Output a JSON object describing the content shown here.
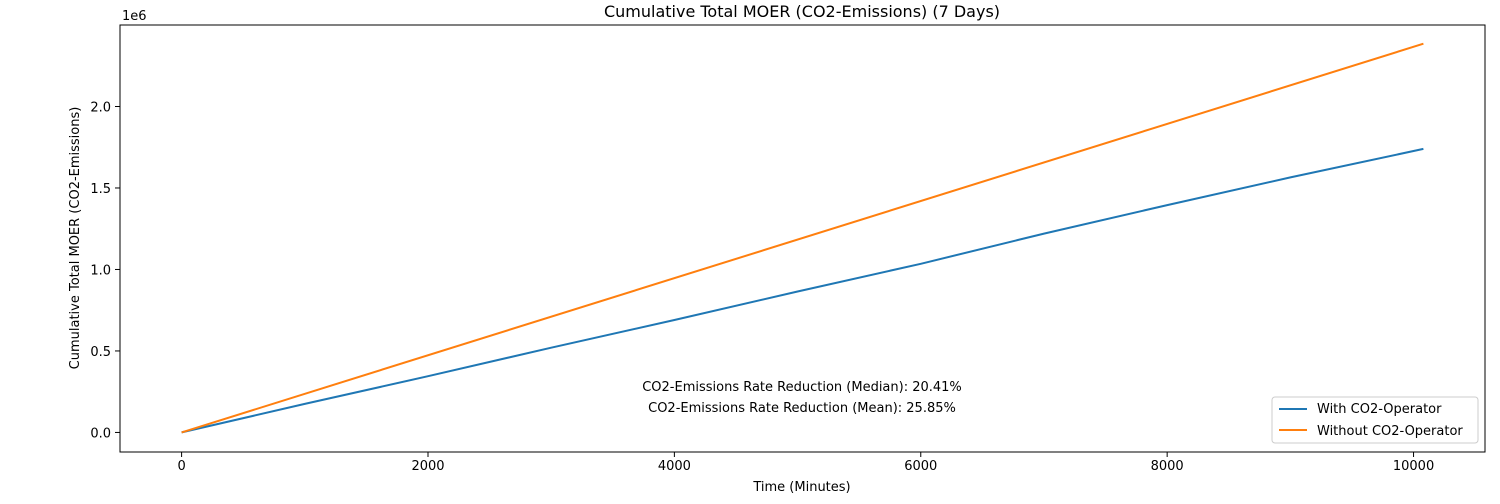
{
  "chart_data": {
    "type": "line",
    "title": "Cumulative Total MOER (CO2-Emissions) (7 Days)",
    "xlabel": "Time (Minutes)",
    "ylabel": "Cumulative Total MOER (CO2-Emissions)",
    "y_offset_label": "1e6",
    "xlim": [
      -500,
      10580
    ],
    "ylim": [
      -0.12,
      2.5
    ],
    "x_ticks": [
      0,
      2000,
      4000,
      6000,
      8000,
      10000
    ],
    "x_tick_labels": [
      "0",
      "2000",
      "4000",
      "6000",
      "8000",
      "10000"
    ],
    "y_ticks": [
      0,
      0.5,
      1.0,
      1.5,
      2.0
    ],
    "y_tick_labels": [
      "0.0",
      "0.5",
      "1.0",
      "1.5",
      "2.0"
    ],
    "grid": false,
    "legend_position": "bottom-right",
    "series": [
      {
        "name": "With CO2-Operator",
        "color": "#1f77b4",
        "x": [
          0,
          1000,
          2000,
          3000,
          4000,
          5000,
          6000,
          7000,
          8000,
          9000,
          10080
        ],
        "y": [
          0,
          0.175,
          0.345,
          0.52,
          0.69,
          0.865,
          1.035,
          1.22,
          1.395,
          1.565,
          1.74
        ]
      },
      {
        "name": "Without CO2-Operator",
        "color": "#ff7f0e",
        "x": [
          0,
          10080
        ],
        "y": [
          0,
          2.385
        ]
      }
    ],
    "annotations": [
      "CO2-Emissions Rate Reduction (Median): 20.41%",
      "CO2-Emissions Rate Reduction (Mean): 25.85%"
    ]
  }
}
